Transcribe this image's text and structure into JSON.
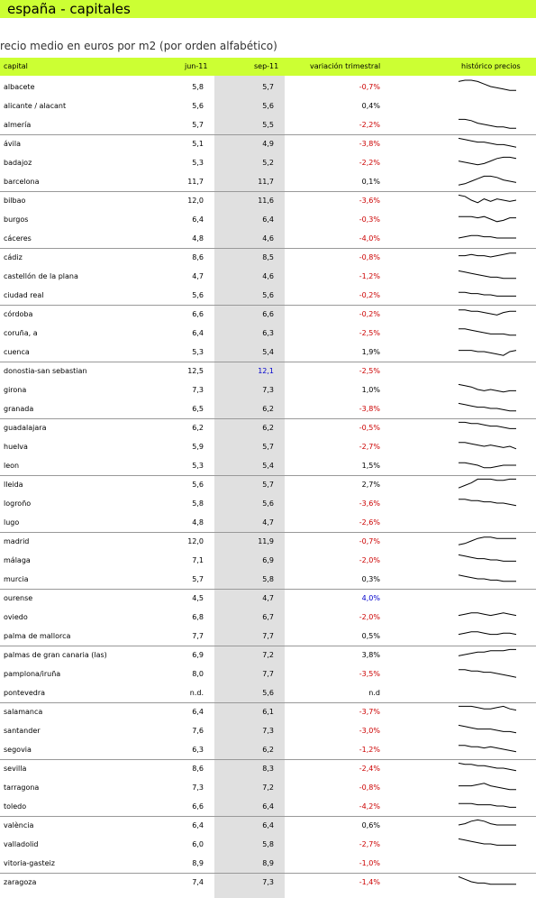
{
  "title": "españa - capitales",
  "subtitle": "recio medio en euros por m2 (por orden alfabético)",
  "headers": {
    "capital": "capital",
    "jun": "jun-11",
    "sep": "sep-11",
    "var": "variación trimestral",
    "hist": "histórico precios"
  },
  "colors": {
    "banner": "#ccff33",
    "negative": "#cc0000",
    "highlight": "#0000cc",
    "neutral": "#000000"
  },
  "rows": [
    {
      "capital": "albacete",
      "jun": "5,8",
      "sep": "5,7",
      "var": "-0,7%",
      "spark": [
        9,
        10,
        10,
        9,
        7,
        5,
        4,
        3,
        2,
        2
      ]
    },
    {
      "capital": "alicante / alacant",
      "jun": "5,6",
      "sep": "5,6",
      "var": "0,4%",
      "spark": []
    },
    {
      "capital": "almería",
      "jun": "5,7",
      "sep": "5,5",
      "var": "-2,2%",
      "spark": [
        9,
        9,
        8,
        6,
        5,
        4,
        3,
        3,
        2,
        2
      ]
    },
    {
      "capital": "ávila",
      "jun": "5,1",
      "sep": "4,9",
      "var": "-3,8%",
      "spark": [
        9,
        8,
        7,
        6,
        6,
        5,
        4,
        4,
        3,
        2
      ]
    },
    {
      "capital": "badajoz",
      "jun": "5,3",
      "sep": "5,2",
      "var": "-2,2%",
      "spark": [
        6,
        5,
        4,
        3,
        4,
        6,
        8,
        9,
        9,
        8
      ]
    },
    {
      "capital": "barcelona",
      "jun": "11,7",
      "sep": "11,7",
      "var": "0,1%",
      "spark": [
        2,
        3,
        5,
        7,
        9,
        9,
        8,
        6,
        5,
        4
      ]
    },
    {
      "capital": "bilbao",
      "jun": "12,0",
      "sep": "11,6",
      "var": "-3,6%",
      "spark": [
        9,
        8,
        5,
        3,
        6,
        4,
        6,
        5,
        4,
        5
      ]
    },
    {
      "capital": "burgos",
      "jun": "6,4",
      "sep": "6,4",
      "var": "-0,3%",
      "spark": [
        7,
        7,
        7,
        6,
        7,
        5,
        3,
        4,
        6,
        6
      ]
    },
    {
      "capital": "cáceres",
      "jun": "4,8",
      "sep": "4,6",
      "var": "-4,0%",
      "spark": [
        5,
        6,
        7,
        7,
        6,
        6,
        5,
        5,
        5,
        5
      ]
    },
    {
      "capital": "cádiz",
      "jun": "8,6",
      "sep": "8,5",
      "var": "-0,8%",
      "spark": [
        6,
        6,
        7,
        6,
        6,
        5,
        6,
        7,
        8,
        8
      ]
    },
    {
      "capital": "castellón de la plana",
      "jun": "4,7",
      "sep": "4,6",
      "var": "-1,2%",
      "spark": [
        9,
        8,
        7,
        6,
        5,
        4,
        4,
        3,
        3,
        3
      ]
    },
    {
      "capital": "ciudad real",
      "jun": "5,6",
      "sep": "5,6",
      "var": "-0,2%",
      "spark": [
        7,
        7,
        6,
        6,
        5,
        5,
        4,
        4,
        4,
        4
      ]
    },
    {
      "capital": "córdoba",
      "jun": "6,6",
      "sep": "6,6",
      "var": "-0,2%",
      "spark": [
        8,
        8,
        7,
        7,
        6,
        5,
        4,
        6,
        7,
        7
      ]
    },
    {
      "capital": "coruña, a",
      "jun": "6,4",
      "sep": "6,3",
      "var": "-2,5%",
      "spark": [
        8,
        8,
        7,
        6,
        5,
        4,
        4,
        4,
        3,
        3
      ]
    },
    {
      "capital": "cuenca",
      "jun": "5,3",
      "sep": "5,4",
      "var": "1,9%",
      "spark": [
        6,
        6,
        6,
        5,
        5,
        4,
        3,
        2,
        5,
        6
      ]
    },
    {
      "capital": "donostia-san sebastian",
      "jun": "12,5",
      "sep": "12,1",
      "var": "-2,5%",
      "spark": []
    },
    {
      "capital": "girona",
      "jun": "7,3",
      "sep": "7,3",
      "var": "1,0%",
      "spark": [
        9,
        8,
        7,
        5,
        4,
        5,
        4,
        3,
        4,
        4
      ]
    },
    {
      "capital": "granada",
      "jun": "6,5",
      "sep": "6,2",
      "var": "-3,8%",
      "spark": [
        9,
        8,
        7,
        6,
        6,
        5,
        5,
        4,
        3,
        3
      ]
    },
    {
      "capital": "guadalajara",
      "jun": "6,2",
      "sep": "6,2",
      "var": "-0,5%",
      "spark": [
        9,
        9,
        8,
        8,
        7,
        6,
        6,
        5,
        4,
        4
      ]
    },
    {
      "capital": "huelva",
      "jun": "5,9",
      "sep": "5,7",
      "var": "-2,7%",
      "spark": [
        8,
        8,
        7,
        6,
        5,
        6,
        5,
        4,
        5,
        3
      ]
    },
    {
      "capital": "leon",
      "jun": "5,3",
      "sep": "5,4",
      "var": "1,5%",
      "spark": [
        7,
        7,
        6,
        5,
        3,
        3,
        4,
        5,
        5,
        5
      ]
    },
    {
      "capital": "lleida",
      "jun": "5,6",
      "sep": "5,7",
      "var": "2,7%",
      "spark": [
        2,
        4,
        6,
        9,
        9,
        9,
        8,
        8,
        9,
        9
      ]
    },
    {
      "capital": "logroño",
      "jun": "5,8",
      "sep": "5,6",
      "var": "-3,6%",
      "spark": [
        8,
        8,
        7,
        7,
        6,
        6,
        5,
        5,
        4,
        3
      ]
    },
    {
      "capital": "lugo",
      "jun": "4,8",
      "sep": "4,7",
      "var": "-2,6%",
      "spark": []
    },
    {
      "capital": "madrid",
      "jun": "12,0",
      "sep": "11,9",
      "var": "-0,7%",
      "spark": [
        2,
        3,
        5,
        7,
        8,
        8,
        7,
        7,
        7,
        7
      ]
    },
    {
      "capital": "málaga",
      "jun": "7,1",
      "sep": "6,9",
      "var": "-2,0%",
      "spark": [
        9,
        8,
        7,
        6,
        6,
        5,
        5,
        4,
        4,
        4
      ]
    },
    {
      "capital": "murcia",
      "jun": "5,7",
      "sep": "5,8",
      "var": "0,3%",
      "spark": [
        8,
        7,
        6,
        5,
        5,
        4,
        4,
        3,
        3,
        3
      ]
    },
    {
      "capital": "ourense",
      "jun": "4,5",
      "sep": "4,7",
      "var": "4,0%",
      "spark": []
    },
    {
      "capital": "oviedo",
      "jun": "6,8",
      "sep": "6,7",
      "var": "-2,0%",
      "spark": [
        6,
        7,
        8,
        8,
        7,
        6,
        7,
        8,
        7,
        6
      ]
    },
    {
      "capital": "palma de mallorca",
      "jun": "7,7",
      "sep": "7,7",
      "var": "0,5%",
      "spark": [
        6,
        7,
        8,
        8,
        7,
        6,
        6,
        7,
        7,
        6
      ]
    },
    {
      "capital": "palmas de gran canaria (las)",
      "jun": "6,9",
      "sep": "7,2",
      "var": "3,8%",
      "spark": [
        4,
        5,
        6,
        7,
        7,
        8,
        8,
        8,
        9,
        9
      ]
    },
    {
      "capital": "pamplona/iruña",
      "jun": "8,0",
      "sep": "7,7",
      "var": "-3,5%",
      "spark": [
        8,
        8,
        7,
        7,
        6,
        6,
        5,
        4,
        3,
        2
      ]
    },
    {
      "capital": "pontevedra",
      "jun": "n.d.",
      "sep": "5,6",
      "var": "n.d",
      "spark": []
    },
    {
      "capital": "salamanca",
      "jun": "6,4",
      "sep": "6,1",
      "var": "-3,7%",
      "spark": [
        9,
        9,
        9,
        8,
        7,
        7,
        8,
        9,
        7,
        6
      ]
    },
    {
      "capital": "santander",
      "jun": "7,6",
      "sep": "7,3",
      "var": "-3,0%",
      "spark": [
        9,
        8,
        7,
        6,
        6,
        6,
        5,
        4,
        4,
        3
      ]
    },
    {
      "capital": "segovia",
      "jun": "6,3",
      "sep": "6,2",
      "var": "-1,2%",
      "spark": [
        8,
        8,
        7,
        7,
        6,
        7,
        6,
        5,
        4,
        3
      ]
    },
    {
      "capital": "sevilla",
      "jun": "8,6",
      "sep": "8,3",
      "var": "-2,4%",
      "spark": [
        9,
        8,
        8,
        7,
        7,
        6,
        5,
        5,
        4,
        3
      ]
    },
    {
      "capital": "tarragona",
      "jun": "7,3",
      "sep": "7,2",
      "var": "-0,8%",
      "spark": [
        6,
        6,
        6,
        7,
        8,
        6,
        5,
        4,
        3,
        3
      ]
    },
    {
      "capital": "toledo",
      "jun": "6,6",
      "sep": "6,4",
      "var": "-4,2%",
      "spark": [
        7,
        7,
        7,
        6,
        6,
        6,
        5,
        5,
        4,
        4
      ]
    },
    {
      "capital": "valència",
      "jun": "6,4",
      "sep": "6,4",
      "var": "0,6%",
      "spark": [
        5,
        6,
        8,
        9,
        8,
        6,
        5,
        5,
        5,
        5
      ]
    },
    {
      "capital": "valladolid",
      "jun": "6,0",
      "sep": "5,8",
      "var": "-2,7%",
      "spark": [
        9,
        8,
        7,
        6,
        5,
        5,
        4,
        4,
        4,
        4
      ]
    },
    {
      "capital": "vitoria-gasteiz",
      "jun": "8,9",
      "sep": "8,9",
      "var": "-1,0%",
      "spark": []
    },
    {
      "capital": "zaragoza",
      "jun": "7,4",
      "sep": "7,3",
      "var": "-1,4%",
      "spark": [
        9,
        7,
        5,
        4,
        4,
        3,
        3,
        3,
        3,
        3
      ]
    }
  ]
}
